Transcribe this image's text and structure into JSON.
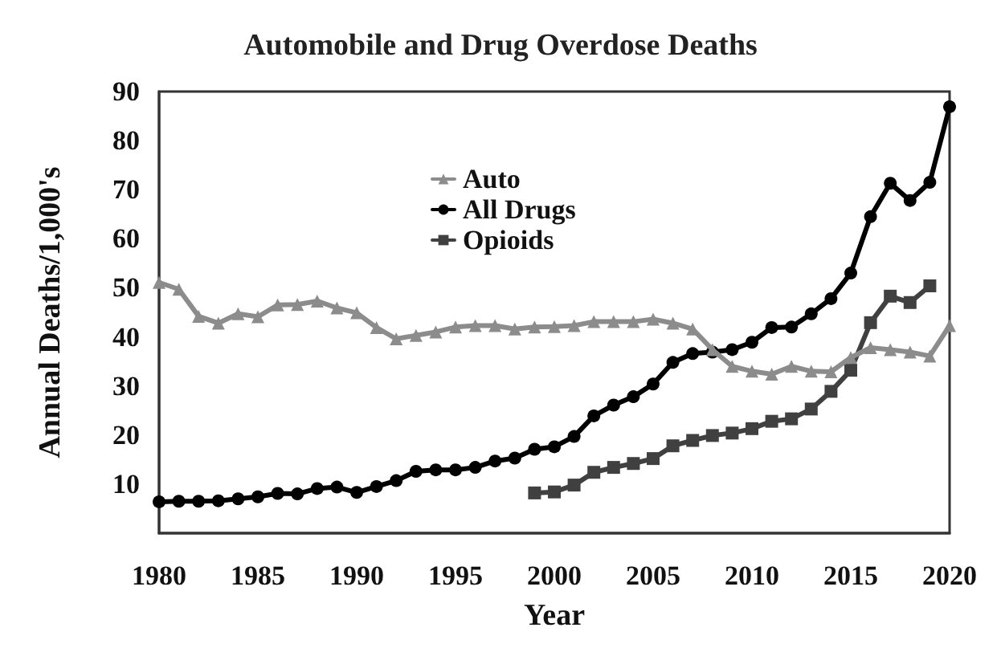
{
  "chart_data": {
    "type": "line",
    "title": "Automobile and Drug Overdose Deaths",
    "xlabel": "Year",
    "ylabel": "Annual Deaths/1,000's",
    "x": [
      1980,
      1981,
      1982,
      1983,
      1984,
      1985,
      1986,
      1987,
      1988,
      1989,
      1990,
      1991,
      1992,
      1993,
      1994,
      1995,
      1996,
      1997,
      1998,
      1999,
      2000,
      2001,
      2002,
      2003,
      2004,
      2005,
      2006,
      2007,
      2008,
      2009,
      2010,
      2011,
      2012,
      2013,
      2014,
      2015,
      2016,
      2017,
      2018,
      2019,
      2020
    ],
    "series": [
      {
        "name": "Auto",
        "color": "#8c8c8c",
        "marker": "triangle",
        "values": [
          51.1,
          49.7,
          44.2,
          42.8,
          44.7,
          44.1,
          46.5,
          46.6,
          47.3,
          45.9,
          44.9,
          41.9,
          39.6,
          40.3,
          41.0,
          42.0,
          42.3,
          42.3,
          41.6,
          42.0,
          42.1,
          42.3,
          43.1,
          43.1,
          43.1,
          43.6,
          42.8,
          41.6,
          37.4,
          34.0,
          33.0,
          32.4,
          34.0,
          33.0,
          32.9,
          35.8,
          37.8,
          37.4,
          36.9,
          36.1,
          42.3
        ]
      },
      {
        "name": "All Drugs",
        "color": "#000000",
        "marker": "circle",
        "values": [
          6.4,
          6.5,
          6.5,
          6.6,
          7.0,
          7.4,
          8.1,
          8.0,
          9.1,
          9.4,
          8.3,
          9.5,
          10.7,
          12.6,
          12.9,
          12.9,
          13.4,
          14.7,
          15.3,
          17.1,
          17.6,
          19.7,
          23.9,
          26.1,
          27.8,
          30.4,
          34.8,
          36.6,
          36.9,
          37.4,
          38.9,
          41.9,
          42.0,
          44.7,
          47.8,
          53.0,
          64.5,
          71.3,
          67.8,
          71.5,
          86.9
        ]
      },
      {
        "name": "Opioids",
        "color": "#404040",
        "marker": "square",
        "x": [
          1999,
          2000,
          2001,
          2002,
          2003,
          2004,
          2005,
          2006,
          2007,
          2008,
          2009,
          2010,
          2011,
          2012,
          2013,
          2014,
          2015,
          2016,
          2017,
          2018,
          2019
        ],
        "values": [
          8.2,
          8.4,
          9.8,
          12.4,
          13.4,
          14.2,
          15.2,
          17.8,
          18.9,
          19.9,
          20.4,
          21.3,
          22.8,
          23.3,
          25.3,
          28.9,
          33.2,
          42.9,
          48.3,
          47.0,
          50.4
        ]
      }
    ],
    "xlim": [
      1980,
      2020
    ],
    "xticks": [
      1980,
      1985,
      1990,
      1995,
      2000,
      2005,
      2010,
      2015,
      2020
    ],
    "ylim": [
      0,
      90
    ],
    "yticks": [
      10,
      20,
      30,
      40,
      50,
      60,
      70,
      80,
      90
    ],
    "grid": false,
    "legend": "top left",
    "line_style": "solid"
  }
}
